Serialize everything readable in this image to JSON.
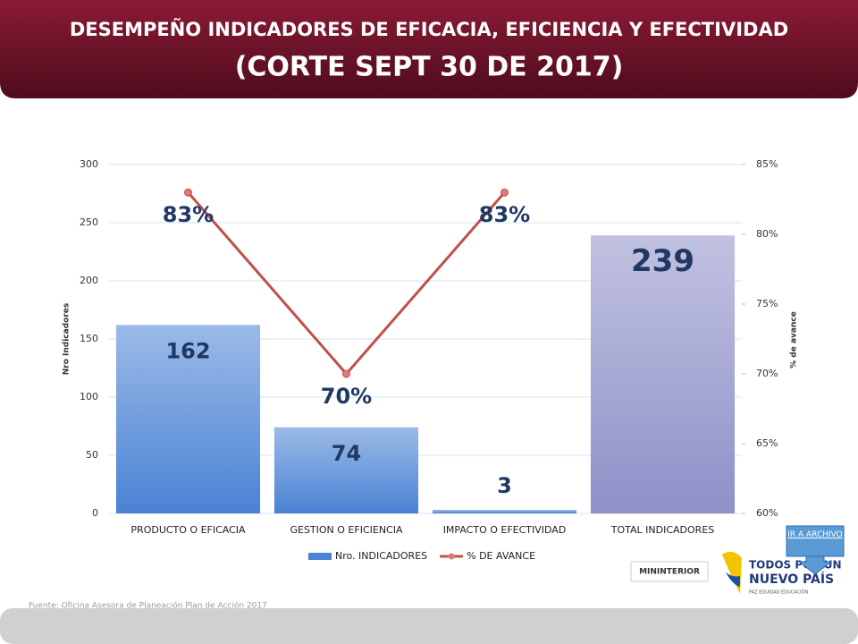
{
  "header": {
    "title": "DESEMPEÑO INDICADORES DE EFICACIA, EFICIENCIA Y EFECTIVIDAD",
    "subtitle": "(CORTE SEPT 30 DE 2017)"
  },
  "chart_data": {
    "type": "bar",
    "categories": [
      "PRODUCTO O EFICACIA",
      "GESTION O EFICIENCIA",
      "IMPACTO O EFECTIVIDAD",
      "TOTAL INDICADORES"
    ],
    "series": [
      {
        "name": "Nro. INDICADORES",
        "type": "bar",
        "color": "#4a82d4",
        "colors": [
          "#4a82d4",
          "#4a82d4",
          "#4a82d4",
          "#8e90c8"
        ],
        "values": [
          162,
          74,
          3,
          239
        ]
      },
      {
        "name": "% DE AVANCE",
        "type": "line",
        "axis": "y2",
        "color": "#c0504d",
        "values": [
          83,
          70,
          83,
          null
        ],
        "value_labels": [
          "83%",
          "70%",
          "83%",
          null
        ]
      }
    ],
    "ylabel": "Nro Indicadores",
    "y2label": "% de avance",
    "ylim": [
      0,
      300
    ],
    "yticks": [
      0,
      50,
      100,
      150,
      200,
      250,
      300
    ],
    "y2lim": [
      60,
      85
    ],
    "y2ticks": [
      {
        "value": 60,
        "label": "60%"
      },
      {
        "value": 65,
        "label": "65%"
      },
      {
        "value": 70,
        "label": "70%"
      },
      {
        "value": 75,
        "label": "75%"
      },
      {
        "value": 80,
        "label": "80%"
      },
      {
        "value": 85,
        "label": "85%"
      }
    ],
    "grid": true,
    "legend": "bottom"
  },
  "footer": {
    "source": "Fuente: Oficina Asesora de Planeación Plan de Acción 2017",
    "button": "IR A ARCHIVO",
    "logo1": "MININTERIOR",
    "logo2a": "TODOS POR UN",
    "logo2b": "NUEVO PAÍS",
    "logo2c": "PAZ  EQUIDAD  EDUCACIÓN"
  }
}
